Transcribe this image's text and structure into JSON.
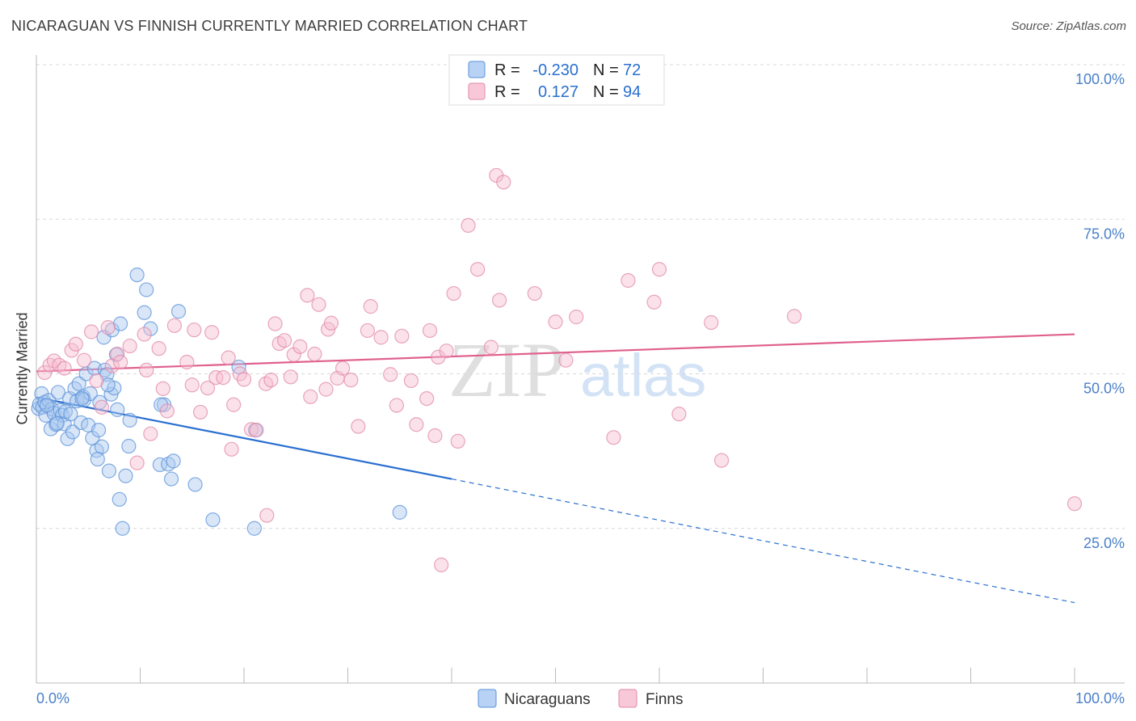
{
  "header": {
    "title": "NICARAGUAN VS FINNISH CURRENTLY MARRIED CORRELATION CHART",
    "source": "Source: ZipAtlas.com"
  },
  "watermark": {
    "zip": "ZIP",
    "atlas": "atlas"
  },
  "colors": {
    "nicaraguan_fill": "#a8c8f0",
    "nicaraguan_stroke": "#5b92d8",
    "nicaraguan_line": "#2a6fd0",
    "finn_fill": "#f6bcd0",
    "finn_stroke": "#e08aa8",
    "finn_line": "#e0608e",
    "accent_text": "#2a6fd0",
    "grid": "#d8d8d8"
  },
  "stats_box": {
    "rows": [
      {
        "r_label": "R =",
        "r_value": "-0.230",
        "n_label": "N =",
        "n_value": "72"
      },
      {
        "r_label": "R =",
        "r_value": "0.127",
        "n_label": "N =",
        "n_value": "94"
      }
    ]
  },
  "legend": {
    "items": [
      "Nicaraguans",
      "Finns"
    ]
  },
  "chart_data": {
    "type": "scatter",
    "title": "NICARAGUAN VS FINNISH CURRENTLY MARRIED CORRELATION CHART",
    "xlabel": "",
    "ylabel": "Currently Married",
    "xlim": [
      0,
      100
    ],
    "ylim": [
      0,
      100
    ],
    "x_tick_labels": [
      "0.0%",
      "100.0%"
    ],
    "y_ticks": [
      25,
      50,
      75,
      100
    ],
    "y_tick_labels": [
      "25.0%",
      "50.0%",
      "75.0%",
      "100.0%"
    ],
    "legend_position": "bottom-center",
    "series": [
      {
        "name": "Nicaraguans",
        "r": -0.23,
        "n": 72,
        "trend": {
          "x0": 0,
          "y0": 46.2,
          "x1": 40,
          "y1": 33.0,
          "dashed_to_x": 100,
          "dashed_to_y": 13.0
        },
        "points": [
          [
            0.2,
            44.4
          ],
          [
            0.3,
            45.1
          ],
          [
            0.5,
            46.8
          ],
          [
            0.6,
            44.6
          ],
          [
            0.8,
            45.4
          ],
          [
            0.9,
            43.3
          ],
          [
            1.2,
            45.7
          ],
          [
            1.4,
            41.1
          ],
          [
            1.5,
            44.3
          ],
          [
            1.7,
            43.6
          ],
          [
            1.9,
            41.8
          ],
          [
            2.1,
            47.0
          ],
          [
            2.3,
            44.1
          ],
          [
            2.5,
            43.3
          ],
          [
            2.7,
            41.9
          ],
          [
            2.8,
            43.9
          ],
          [
            3.0,
            39.5
          ],
          [
            3.2,
            46.0
          ],
          [
            3.5,
            40.6
          ],
          [
            3.7,
            47.6
          ],
          [
            3.9,
            45.6
          ],
          [
            4.1,
            48.4
          ],
          [
            4.3,
            42.1
          ],
          [
            4.5,
            46.3
          ],
          [
            4.6,
            45.8
          ],
          [
            4.8,
            50.0
          ],
          [
            5.0,
            41.7
          ],
          [
            5.2,
            46.8
          ],
          [
            5.4,
            39.6
          ],
          [
            5.6,
            50.9
          ],
          [
            5.8,
            37.6
          ],
          [
            6.0,
            40.9
          ],
          [
            6.1,
            45.4
          ],
          [
            6.3,
            38.2
          ],
          [
            6.5,
            55.9
          ],
          [
            6.6,
            50.6
          ],
          [
            6.8,
            49.9
          ],
          [
            7.0,
            34.3
          ],
          [
            7.2,
            46.7
          ],
          [
            7.3,
            57.1
          ],
          [
            7.5,
            47.7
          ],
          [
            7.7,
            53.1
          ],
          [
            7.8,
            44.2
          ],
          [
            8.0,
            29.7
          ],
          [
            8.1,
            58.1
          ],
          [
            8.3,
            25.0
          ],
          [
            8.6,
            33.5
          ],
          [
            8.9,
            38.3
          ],
          [
            9.7,
            66.0
          ],
          [
            10.4,
            59.9
          ],
          [
            10.6,
            63.6
          ],
          [
            11.0,
            57.3
          ],
          [
            11.9,
            35.3
          ],
          [
            12.3,
            45.0
          ],
          [
            12.7,
            35.4
          ],
          [
            13.0,
            33.0
          ],
          [
            13.2,
            35.9
          ],
          [
            13.7,
            60.1
          ],
          [
            15.3,
            32.1
          ],
          [
            17.0,
            26.4
          ],
          [
            19.5,
            51.1
          ],
          [
            21.0,
            25.0
          ],
          [
            21.1,
            40.9
          ],
          [
            35.0,
            27.6
          ],
          [
            1.0,
            44.9
          ],
          [
            2.0,
            42.0
          ],
          [
            3.3,
            43.5
          ],
          [
            4.4,
            46.0
          ],
          [
            12.0,
            45.0
          ],
          [
            5.9,
            36.2
          ],
          [
            9.0,
            42.5
          ],
          [
            6.9,
            48.2
          ]
        ]
      },
      {
        "name": "Finns",
        "r": 0.127,
        "n": 94,
        "trend": {
          "x0": 0,
          "y0": 50.4,
          "x1": 100,
          "y1": 56.4
        },
        "points": [
          [
            0.8,
            50.2
          ],
          [
            1.3,
            51.4
          ],
          [
            1.7,
            52.1
          ],
          [
            2.2,
            51.4
          ],
          [
            2.7,
            50.9
          ],
          [
            3.4,
            53.8
          ],
          [
            3.8,
            54.8
          ],
          [
            4.6,
            52.2
          ],
          [
            5.3,
            56.8
          ],
          [
            5.8,
            48.9
          ],
          [
            6.3,
            44.6
          ],
          [
            6.9,
            57.5
          ],
          [
            7.3,
            51.3
          ],
          [
            7.8,
            53.2
          ],
          [
            8.1,
            51.9
          ],
          [
            9.0,
            54.5
          ],
          [
            9.7,
            35.6
          ],
          [
            10.4,
            56.4
          ],
          [
            10.6,
            50.6
          ],
          [
            11.0,
            40.3
          ],
          [
            11.8,
            54.1
          ],
          [
            12.2,
            47.6
          ],
          [
            12.6,
            44.0
          ],
          [
            13.3,
            57.8
          ],
          [
            14.5,
            51.9
          ],
          [
            15.0,
            48.2
          ],
          [
            15.2,
            57.1
          ],
          [
            15.8,
            43.8
          ],
          [
            16.5,
            47.7
          ],
          [
            16.9,
            56.7
          ],
          [
            17.3,
            49.4
          ],
          [
            18.0,
            49.4
          ],
          [
            18.5,
            52.6
          ],
          [
            18.8,
            37.8
          ],
          [
            19.0,
            45.0
          ],
          [
            19.6,
            50.0
          ],
          [
            20.0,
            49.1
          ],
          [
            20.7,
            41.0
          ],
          [
            21.2,
            40.9
          ],
          [
            22.1,
            48.4
          ],
          [
            22.2,
            27.1
          ],
          [
            22.6,
            49.0
          ],
          [
            23.0,
            58.1
          ],
          [
            23.4,
            54.9
          ],
          [
            23.9,
            55.4
          ],
          [
            24.5,
            49.5
          ],
          [
            24.8,
            53.1
          ],
          [
            25.4,
            54.4
          ],
          [
            26.1,
            62.7
          ],
          [
            26.4,
            46.3
          ],
          [
            26.8,
            53.2
          ],
          [
            27.2,
            61.2
          ],
          [
            27.9,
            47.5
          ],
          [
            28.1,
            57.2
          ],
          [
            28.4,
            58.2
          ],
          [
            29.0,
            49.3
          ],
          [
            29.5,
            50.9
          ],
          [
            30.3,
            49.0
          ],
          [
            31.0,
            41.5
          ],
          [
            31.9,
            57.0
          ],
          [
            32.2,
            60.9
          ],
          [
            33.2,
            55.9
          ],
          [
            34.1,
            49.9
          ],
          [
            34.7,
            44.9
          ],
          [
            35.2,
            56.1
          ],
          [
            36.1,
            48.9
          ],
          [
            36.6,
            41.8
          ],
          [
            37.6,
            46.0
          ],
          [
            37.9,
            57.0
          ],
          [
            38.4,
            40.0
          ],
          [
            38.7,
            52.7
          ],
          [
            39.0,
            19.1
          ],
          [
            39.5,
            53.7
          ],
          [
            40.2,
            63.0
          ],
          [
            40.6,
            39.1
          ],
          [
            41.6,
            74.0
          ],
          [
            42.5,
            66.9
          ],
          [
            43.8,
            54.3
          ],
          [
            44.3,
            82.1
          ],
          [
            44.6,
            61.9
          ],
          [
            45.0,
            81.0
          ],
          [
            48.0,
            63.0
          ],
          [
            50.0,
            58.4
          ],
          [
            51.0,
            52.2
          ],
          [
            52.0,
            59.2
          ],
          [
            55.6,
            39.7
          ],
          [
            57.0,
            65.1
          ],
          [
            59.5,
            61.6
          ],
          [
            60.0,
            66.9
          ],
          [
            61.9,
            43.5
          ],
          [
            65.0,
            58.3
          ],
          [
            66.0,
            36.0
          ],
          [
            73.0,
            59.3
          ],
          [
            100.0,
            29.0
          ]
        ]
      }
    ]
  }
}
